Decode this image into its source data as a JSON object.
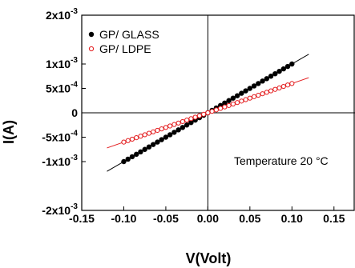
{
  "chart_data": {
    "type": "scatter",
    "xlabel": "V(Volt)",
    "ylabel": "I(A)",
    "xlim": [
      -0.15,
      0.175
    ],
    "ylim": [
      -0.002,
      0.002
    ],
    "x_ticks": [
      -0.15,
      -0.1,
      -0.05,
      0.0,
      0.05,
      0.1,
      0.15
    ],
    "x_tick_labels": [
      "-0.15",
      "-0.10",
      "-0.05",
      "0.00",
      "0.05",
      "0.10",
      "0.15"
    ],
    "y_ticks": [
      -0.002,
      -0.001,
      -0.0005,
      0,
      0.0005,
      0.001,
      0.002
    ],
    "y_tick_labels": [
      {
        "mantissa": "-2x10",
        "exp": "-3"
      },
      {
        "mantissa": "-1x10",
        "exp": "-3"
      },
      {
        "mantissa": "-5x10",
        "exp": "-4"
      },
      {
        "mantissa": "0",
        "exp": ""
      },
      {
        "mantissa": "5x10",
        "exp": "-4"
      },
      {
        "mantissa": "1x10",
        "exp": "-3"
      },
      {
        "mantissa": "2x10",
        "exp": "-3"
      }
    ],
    "zero_lines": true,
    "grid": false,
    "legend_position": "top-left",
    "annotation": "Temperature 20 °C",
    "series": [
      {
        "name": "GP/ GLASS",
        "color": "#000000",
        "marker": "filled-circle",
        "x_range": [
          -0.1,
          0.1
        ],
        "n_points": 41,
        "slope": 0.01,
        "fit_line": {
          "x_range": [
            -0.12,
            0.12
          ],
          "color": "#000000"
        }
      },
      {
        "name": "GP/ LDPE",
        "color": "#e31a1c",
        "marker": "open-circle",
        "x_range": [
          -0.1,
          0.1
        ],
        "n_points": 41,
        "slope": 0.006,
        "fit_line": {
          "x_range": [
            -0.12,
            0.12
          ],
          "color": "#e31a1c"
        }
      }
    ]
  }
}
